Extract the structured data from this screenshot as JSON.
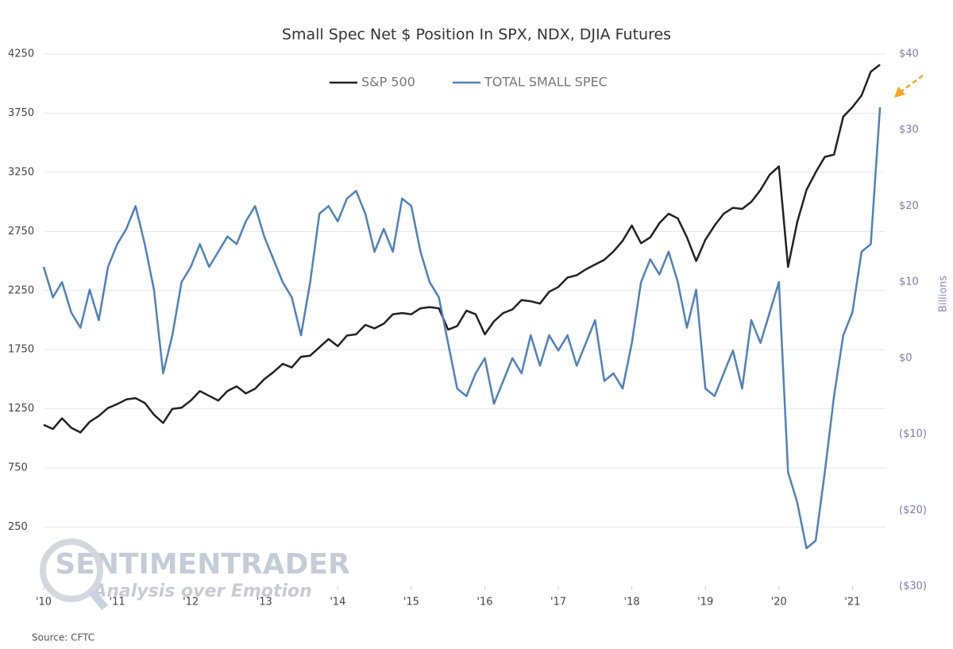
{
  "chart_data": {
    "type": "line",
    "title": "Small Spec Net $ Position In SPX, NDX, DJIA Futures",
    "y2_label": "Billions",
    "source": "Source: CFTC",
    "watermark": [
      "SENTIMENTRADER",
      "Analysis over Emotion"
    ],
    "legend": "top",
    "grid": true,
    "x": [
      2010,
      2010.125,
      2010.25,
      2010.375,
      2010.5,
      2010.625,
      2010.75,
      2010.875,
      2011,
      2011.125,
      2011.25,
      2011.375,
      2011.5,
      2011.625,
      2011.75,
      2011.875,
      2012,
      2012.125,
      2012.25,
      2012.375,
      2012.5,
      2012.625,
      2012.75,
      2012.875,
      2013,
      2013.125,
      2013.25,
      2013.375,
      2013.5,
      2013.625,
      2013.75,
      2013.875,
      2014,
      2014.125,
      2014.25,
      2014.375,
      2014.5,
      2014.625,
      2014.75,
      2014.875,
      2015,
      2015.125,
      2015.25,
      2015.375,
      2015.5,
      2015.625,
      2015.75,
      2015.875,
      2016,
      2016.125,
      2016.25,
      2016.375,
      2016.5,
      2016.625,
      2016.75,
      2016.875,
      2017,
      2017.125,
      2017.25,
      2017.375,
      2017.5,
      2017.625,
      2017.75,
      2017.875,
      2018,
      2018.125,
      2018.25,
      2018.375,
      2018.5,
      2018.625,
      2018.75,
      2018.875,
      2019,
      2019.125,
      2019.25,
      2019.375,
      2019.5,
      2019.625,
      2019.75,
      2019.875,
      2020,
      2020.125,
      2020.25,
      2020.375,
      2020.5,
      2020.625,
      2020.75,
      2020.875,
      2021,
      2021.125,
      2021.25,
      2021.375
    ],
    "xlim": [
      2010,
      2021.45
    ],
    "xticks": [
      {
        "value": 2010,
        "label": "'10"
      },
      {
        "value": 2011,
        "label": "'11"
      },
      {
        "value": 2012,
        "label": "'12"
      },
      {
        "value": 2013,
        "label": "'13"
      },
      {
        "value": 2014,
        "label": "'14"
      },
      {
        "value": 2015,
        "label": "'15"
      },
      {
        "value": 2016,
        "label": "'16"
      },
      {
        "value": 2017,
        "label": "'17"
      },
      {
        "value": 2018,
        "label": "'18"
      },
      {
        "value": 2019,
        "label": "'19"
      },
      {
        "value": 2020,
        "label": "'20"
      },
      {
        "value": 2021,
        "label": "'21"
      }
    ],
    "ylim": [
      -250,
      4250
    ],
    "yticks": [
      250,
      750,
      1250,
      1750,
      2250,
      2750,
      3250,
      3750,
      4250
    ],
    "y2lim": [
      -30,
      40
    ],
    "y2ticks": [
      {
        "value": -30,
        "label": "($30)"
      },
      {
        "value": -20,
        "label": "($20)"
      },
      {
        "value": -10,
        "label": "($10)"
      },
      {
        "value": 0,
        "label": "$0"
      },
      {
        "value": 10,
        "label": "$10"
      },
      {
        "value": 20,
        "label": "$20"
      },
      {
        "value": 30,
        "label": "$30"
      },
      {
        "value": 40,
        "label": "$40"
      }
    ],
    "series": [
      {
        "name": "S&P 500",
        "color": "#222222",
        "axis": "y",
        "values": [
          1115,
          1080,
          1170,
          1090,
          1050,
          1140,
          1190,
          1257,
          1290,
          1330,
          1340,
          1300,
          1200,
          1130,
          1250,
          1260,
          1320,
          1400,
          1360,
          1320,
          1400,
          1440,
          1380,
          1420,
          1500,
          1560,
          1630,
          1600,
          1690,
          1700,
          1770,
          1840,
          1780,
          1870,
          1880,
          1960,
          1930,
          1970,
          2050,
          2060,
          2050,
          2100,
          2110,
          2100,
          1920,
          1950,
          2080,
          2050,
          1880,
          1990,
          2060,
          2090,
          2170,
          2160,
          2140,
          2240,
          2280,
          2360,
          2380,
          2430,
          2470,
          2510,
          2580,
          2670,
          2800,
          2650,
          2700,
          2820,
          2900,
          2860,
          2700,
          2500,
          2680,
          2800,
          2900,
          2950,
          2940,
          3000,
          3100,
          3230,
          3300,
          2450,
          2830,
          3100,
          3250,
          3380,
          3400,
          3720,
          3800,
          3900,
          4100,
          4160
        ]
      },
      {
        "name": "TOTAL SMALL SPEC",
        "color": "#4f81bd",
        "axis": "y2",
        "values": [
          12,
          8,
          10,
          6,
          4,
          9,
          5,
          12,
          15,
          17,
          20,
          15,
          9,
          -2,
          3,
          10,
          12,
          15,
          12,
          14,
          16,
          15,
          18,
          20,
          16,
          13,
          10,
          8,
          3,
          10,
          19,
          20,
          18,
          21,
          22,
          19,
          14,
          17,
          14,
          21,
          20,
          14,
          10,
          8,
          2,
          -4,
          -5,
          -2,
          0,
          -6,
          -3,
          0,
          -2,
          3,
          -1,
          3,
          1,
          3,
          -1,
          2,
          5,
          -3,
          -2,
          -4,
          2,
          10,
          13,
          11,
          14,
          10,
          4,
          9,
          -4,
          -5,
          -2,
          1,
          -4,
          5,
          2,
          6,
          10,
          -15,
          -19,
          -25,
          -24,
          -15,
          -5,
          3,
          6,
          14,
          15,
          33
        ]
      }
    ]
  }
}
